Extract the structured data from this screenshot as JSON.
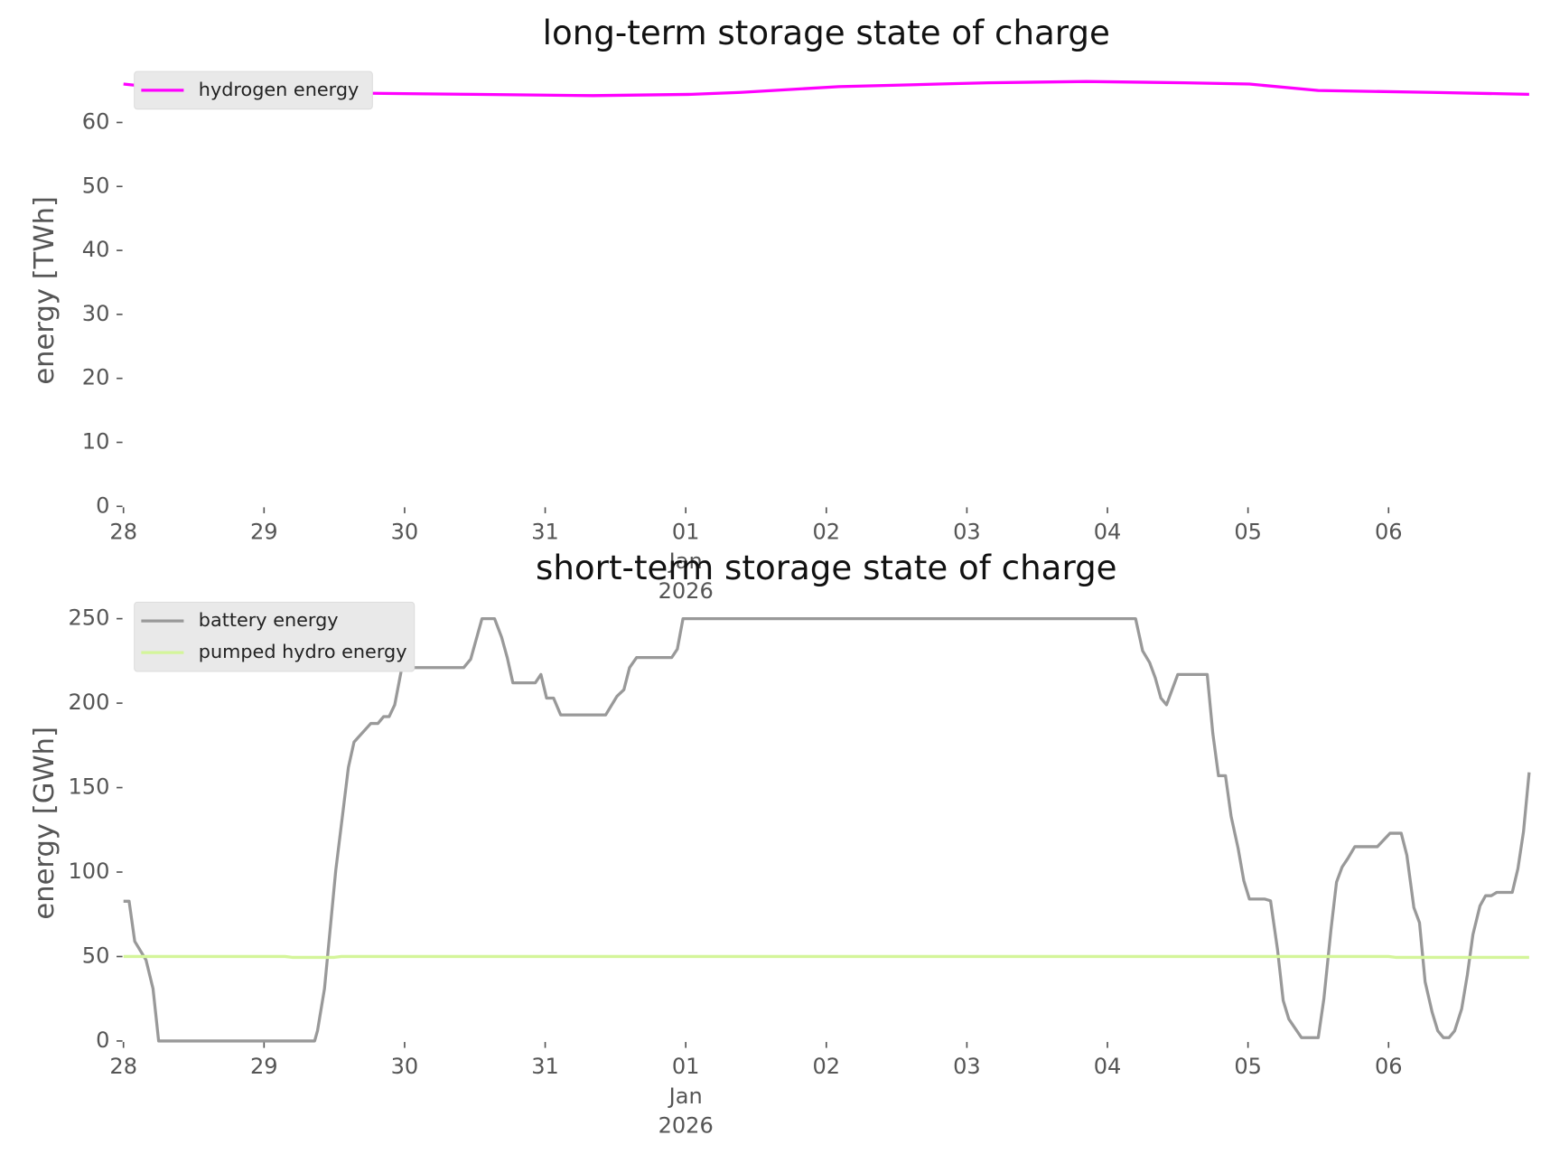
{
  "chart_data": [
    {
      "type": "line",
      "title": "long-term storage state of charge",
      "ylabel": "energy [TWh]",
      "xlim": [
        0,
        10
      ],
      "ylim": [
        0,
        67.5
      ],
      "xticks": [
        {
          "value": 0,
          "label": "28"
        },
        {
          "value": 1,
          "label": "29"
        },
        {
          "value": 2,
          "label": "30"
        },
        {
          "value": 3,
          "label": "31"
        },
        {
          "value": 4,
          "label": "01\nJan\n2026"
        },
        {
          "value": 5,
          "label": "02"
        },
        {
          "value": 6,
          "label": "03"
        },
        {
          "value": 7,
          "label": "04"
        },
        {
          "value": 8,
          "label": "05"
        },
        {
          "value": 9,
          "label": "06"
        }
      ],
      "yticks": [
        0,
        10,
        20,
        30,
        40,
        50,
        60
      ],
      "legend": "upper left",
      "series": [
        {
          "name": "hydrogen energy",
          "color": "#ff00ff",
          "x": [
            0,
            0.18,
            1.23,
            2.0,
            2.49,
            3.34,
            4.04,
            4.39,
            5.09,
            5.8,
            6.15,
            6.85,
            7.55,
            8.01,
            8.5,
            9.31,
            10
          ],
          "values": [
            66.0,
            65.6,
            64.7,
            64.5,
            64.4,
            64.2,
            64.4,
            64.7,
            65.6,
            66.0,
            66.2,
            66.4,
            66.2,
            66.0,
            65.0,
            64.7,
            64.4
          ]
        }
      ]
    },
    {
      "type": "line",
      "title": "short-term storage state of charge",
      "ylabel": "energy [GWh]",
      "xlim": [
        0,
        10
      ],
      "ylim": [
        0,
        258
      ],
      "xticks": [
        {
          "value": 0,
          "label": "28"
        },
        {
          "value": 1,
          "label": "29"
        },
        {
          "value": 2,
          "label": "30"
        },
        {
          "value": 3,
          "label": "31"
        },
        {
          "value": 4,
          "label": "01\nJan\n2026"
        },
        {
          "value": 5,
          "label": "02"
        },
        {
          "value": 6,
          "label": "03"
        },
        {
          "value": 7,
          "label": "04"
        },
        {
          "value": 8,
          "label": "05"
        },
        {
          "value": 9,
          "label": "06"
        }
      ],
      "yticks": [
        0,
        50,
        100,
        150,
        200,
        250
      ],
      "legend": "upper left",
      "series": [
        {
          "name": "battery energy",
          "color": "#999999",
          "x": [
            0,
            0.04,
            0.08,
            0.16,
            0.21,
            0.25,
            1.36,
            1.38,
            1.43,
            1.51,
            1.6,
            1.64,
            1.76,
            1.81,
            1.85,
            1.89,
            1.93,
            1.98,
            2.02,
            2.42,
            2.47,
            2.55,
            2.64,
            2.69,
            2.73,
            2.77,
            2.93,
            2.97,
            3.01,
            3.06,
            3.11,
            3.43,
            3.51,
            3.56,
            3.6,
            3.65,
            3.9,
            3.94,
            3.98,
            7.2,
            7.25,
            7.3,
            7.34,
            7.38,
            7.42,
            7.5,
            7.71,
            7.75,
            7.79,
            7.84,
            7.88,
            7.93,
            7.97,
            8.01,
            8.12,
            8.16,
            8.21,
            8.25,
            8.29,
            8.38,
            8.5,
            8.54,
            8.59,
            8.63,
            8.67,
            8.71,
            8.76,
            8.92,
            9.01,
            9.09,
            9.13,
            9.18,
            9.22,
            9.26,
            9.31,
            9.35,
            9.39,
            9.43,
            9.47,
            9.52,
            9.56,
            9.6,
            9.65,
            9.69,
            9.73,
            9.77,
            9.88,
            9.92,
            9.96,
            10
          ],
          "values": [
            82.7,
            82.7,
            59,
            48,
            31,
            0,
            0,
            6,
            31,
            101,
            162,
            177,
            188,
            188,
            192,
            192,
            199,
            221,
            221,
            221,
            226,
            250,
            250,
            239,
            227,
            212,
            212,
            217,
            203,
            203,
            193,
            193,
            204,
            208,
            221,
            227,
            227,
            232,
            250,
            250,
            231,
            224,
            215,
            203,
            199,
            217,
            217,
            182,
            157,
            157,
            133,
            114,
            95,
            84,
            84,
            83,
            54,
            24,
            13,
            2,
            2,
            25,
            66,
            94,
            103,
            108,
            115,
            115,
            123,
            123,
            110,
            79,
            70,
            35,
            17,
            6,
            2,
            2,
            6,
            19,
            39,
            63,
            80,
            86,
            86,
            88,
            88,
            102,
            124,
            159
          ]
        },
        {
          "name": "pumped hydro energy",
          "color": "#d4f59a",
          "x": [
            0,
            1.15,
            1.2,
            1.5,
            1.55,
            9.0,
            9.05,
            10
          ],
          "values": [
            50,
            50,
            49.5,
            49.5,
            50,
            50,
            49.5,
            49.5
          ]
        }
      ]
    }
  ]
}
